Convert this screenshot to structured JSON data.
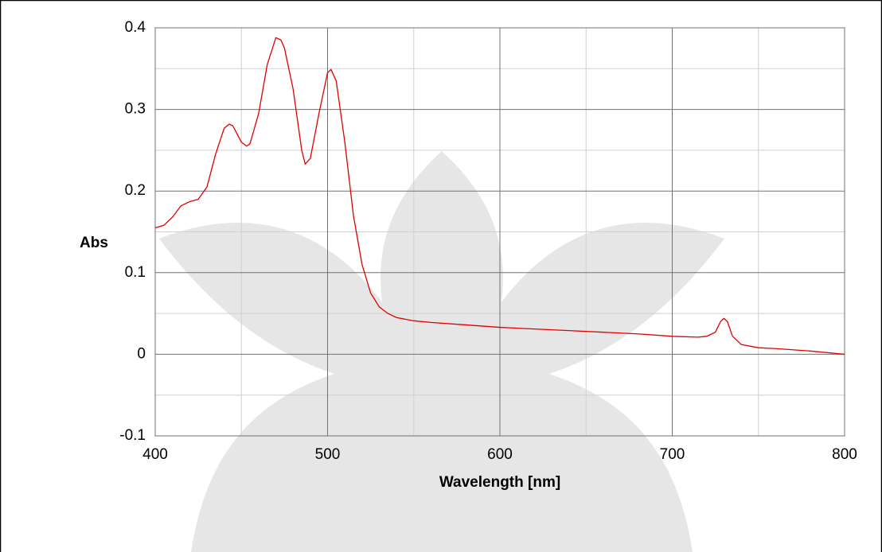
{
  "chart_data": {
    "type": "line",
    "xlabel": "Wavelength [nm]",
    "ylabel": "Abs",
    "x": [
      400,
      405,
      410,
      415,
      420,
      425,
      430,
      435,
      440,
      443,
      445,
      450,
      453,
      455,
      460,
      465,
      470,
      473,
      475,
      480,
      485,
      487,
      490,
      495,
      500,
      502,
      505,
      510,
      515,
      520,
      525,
      530,
      535,
      540,
      550,
      560,
      580,
      600,
      620,
      640,
      660,
      680,
      700,
      715,
      720,
      725,
      728,
      730,
      732,
      735,
      740,
      750,
      760,
      780,
      800
    ],
    "values": [
      0.155,
      0.158,
      0.168,
      0.182,
      0.187,
      0.19,
      0.205,
      0.245,
      0.277,
      0.282,
      0.28,
      0.26,
      0.255,
      0.258,
      0.295,
      0.355,
      0.388,
      0.385,
      0.375,
      0.325,
      0.25,
      0.233,
      0.24,
      0.295,
      0.345,
      0.349,
      0.335,
      0.26,
      0.17,
      0.11,
      0.075,
      0.058,
      0.05,
      0.045,
      0.041,
      0.039,
      0.036,
      0.033,
      0.031,
      0.029,
      0.027,
      0.025,
      0.022,
      0.021,
      0.022,
      0.027,
      0.04,
      0.044,
      0.04,
      0.022,
      0.012,
      0.008,
      0.007,
      0.004,
      0.0
    ],
    "color": "#e00000",
    "xlim": [
      400,
      800
    ],
    "ylim": [
      -0.1,
      0.4
    ],
    "xticks": [
      400,
      500,
      600,
      700,
      800
    ],
    "yticks": [
      -0.1,
      0,
      0.1,
      0.2,
      0.3,
      0.4
    ],
    "xminorticks": [
      450,
      550,
      650,
      750
    ],
    "yminorticks": [
      -0.05,
      0.05,
      0.15,
      0.25,
      0.35
    ],
    "grid": true
  }
}
